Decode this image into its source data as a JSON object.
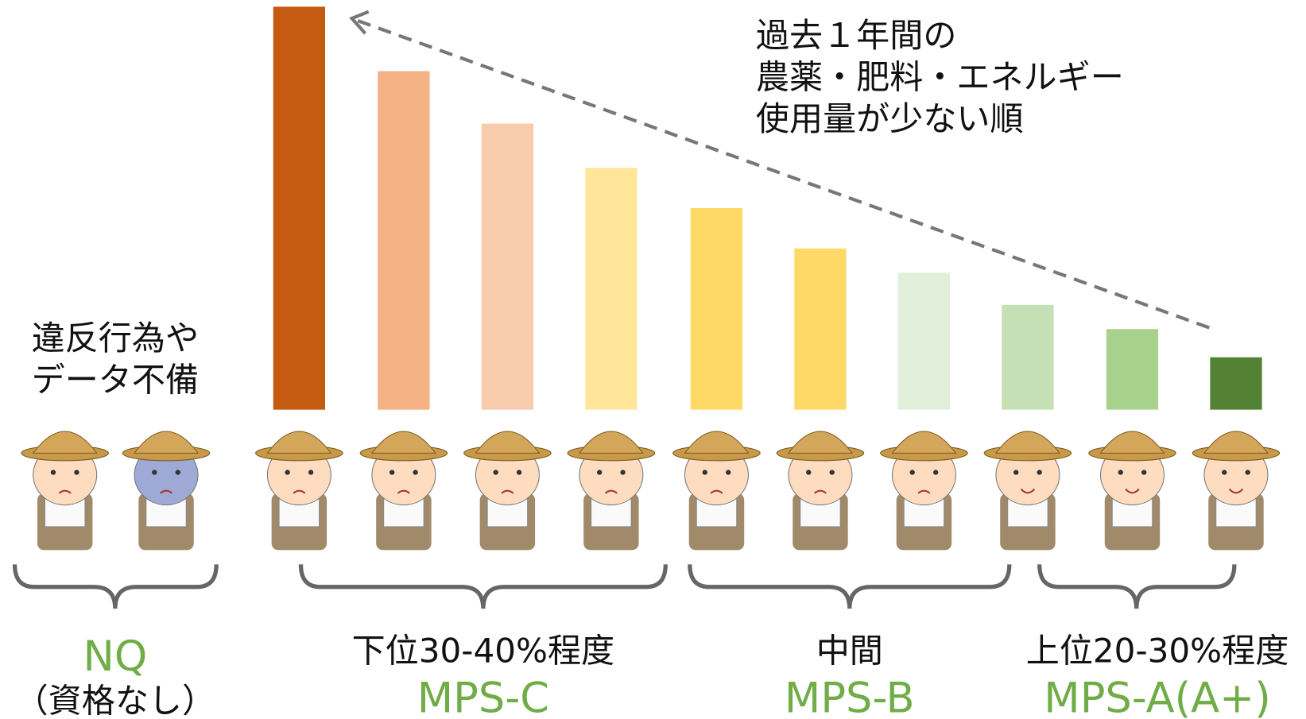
{
  "chart_data": {
    "type": "bar",
    "categories": [
      null,
      null,
      null,
      null,
      null,
      null,
      null,
      null,
      null,
      null
    ],
    "values": [
      100,
      84,
      71,
      60,
      50,
      40,
      34,
      26,
      20,
      13
    ],
    "colors": [
      "#c55a11",
      "#f4b183",
      "#f8cbad",
      "#ffe699",
      "#ffd966",
      "#ffd966",
      "#e2efda",
      "#c5e0b4",
      "#a9d18e",
      "#548235"
    ],
    "ylim": [
      0,
      100
    ],
    "annotation": [
      "過去１年間の",
      "農薬・肥料・エネルギー",
      "使用量が少ない順"
    ],
    "nq_note": [
      "違反行為や",
      "データ不備"
    ],
    "groups": [
      {
        "name": "NQ",
        "sub": "（資格なし）"
      },
      {
        "range": "下位30-40%程度",
        "name": "MPS-C"
      },
      {
        "range": "中間",
        "name": "MPS-B"
      },
      {
        "range": "上位20-30%程度",
        "name": "MPS-A(A+)"
      }
    ]
  }
}
